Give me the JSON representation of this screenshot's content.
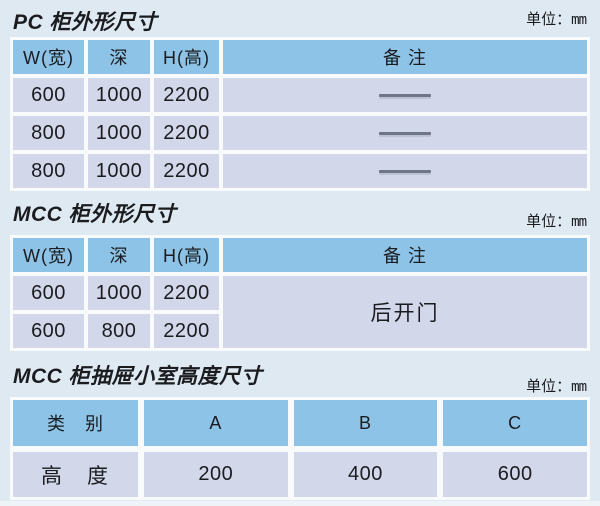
{
  "colors": {
    "page_bg": "#DFE9F2",
    "header_cell_blue": "#8DC3E6",
    "data_cell_lavender": "#D3D7EA",
    "table_frame_white": "#F8FAFC",
    "text": "#1A1C20",
    "dash_gray": "#6F7787"
  },
  "sections": [
    {
      "title": "PC 柜外形尺寸",
      "unit_label": "单位：",
      "unit_value": "mm",
      "table": {
        "headers": [
          "W(宽)",
          "深",
          "H(高)",
          "备 注"
        ],
        "rows": [
          {
            "w": "600",
            "d": "1000",
            "h": "2200",
            "remark": "——"
          },
          {
            "w": "800",
            "d": "1000",
            "h": "2200",
            "remark": "——"
          },
          {
            "w": "800",
            "d": "1000",
            "h": "2200",
            "remark": "——"
          }
        ]
      }
    },
    {
      "title": "MCC 柜外形尺寸",
      "unit_label": "单位：",
      "unit_value": "mm",
      "table": {
        "headers": [
          "W(宽)",
          "深",
          "H(高)",
          "备 注"
        ],
        "rows": [
          {
            "w": "600",
            "d": "1000",
            "h": "2200"
          },
          {
            "w": "600",
            "d": "800",
            "h": "2200"
          }
        ],
        "merged_remark": "后开门"
      }
    },
    {
      "title": "MCC 柜抽屉小室高度尺寸",
      "unit_label": "单位：",
      "unit_value": "mm",
      "table": {
        "headers": [
          "类　别",
          "A",
          "B",
          "C"
        ],
        "row_label": "高　度",
        "values": [
          "200",
          "400",
          "600"
        ]
      }
    }
  ]
}
